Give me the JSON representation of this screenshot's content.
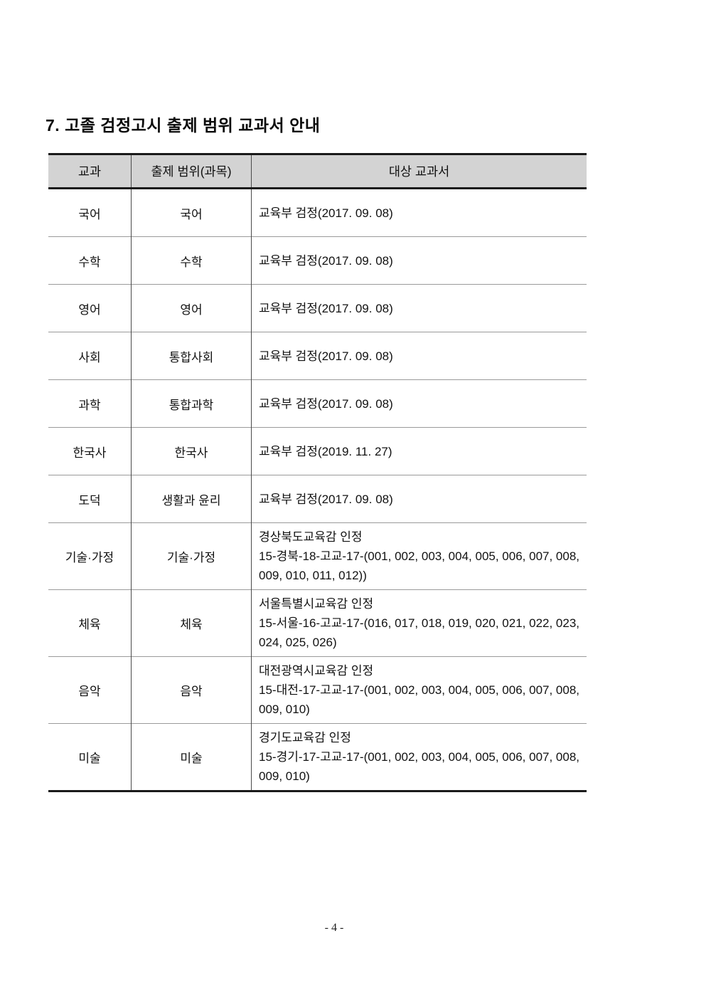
{
  "page": {
    "title": "7. 고졸 검정고시 출제 범위 교과서 안내",
    "footer": "- 4 -"
  },
  "table": {
    "headers": {
      "subject": "교과",
      "scope": "출제 범위(과목)",
      "textbook": "대상 교과서"
    },
    "rows": [
      {
        "subject": "국어",
        "scope": "국어",
        "textbook": "교육부 검정(2017. 09. 08)"
      },
      {
        "subject": "수학",
        "scope": "수학",
        "textbook": "교육부 검정(2017. 09. 08)"
      },
      {
        "subject": "영어",
        "scope": "영어",
        "textbook": "교육부 검정(2017. 09. 08)"
      },
      {
        "subject": "사회",
        "scope": "통합사회",
        "textbook": "교육부 검정(2017. 09. 08)"
      },
      {
        "subject": "과학",
        "scope": "통합과학",
        "textbook": "교육부 검정(2017. 09. 08)"
      },
      {
        "subject": "한국사",
        "scope": "한국사",
        "textbook": "교육부 검정(2019. 11. 27)"
      },
      {
        "subject": "도덕",
        "scope": "생활과 윤리",
        "textbook": "교육부 검정(2017. 09. 08)"
      },
      {
        "subject": "기술·가정",
        "scope": "기술·가정",
        "textbook": "경상북도교육감 인정\n15-경북-18-고교-17-(001, 002, 003, 004, 005, 006, 007, 008, 009, 010, 011, 012))"
      },
      {
        "subject": "체육",
        "scope": "체육",
        "textbook": "서울특별시교육감 인정\n15-서울-16-고교-17-(016, 017, 018, 019, 020, 021, 022, 023, 024, 025, 026)"
      },
      {
        "subject": "음악",
        "scope": "음악",
        "textbook": "대전광역시교육감 인정\n15-대전-17-고교-17-(001, 002, 003, 004, 005, 006, 007, 008, 009, 010)"
      },
      {
        "subject": "미술",
        "scope": "미술",
        "textbook": "경기도교육감 인정\n15-경기-17-고교-17-(001, 002, 003, 004, 005, 006, 007, 008, 009, 010)"
      }
    ]
  },
  "colors": {
    "header_bg": "#d3d3d3",
    "border_heavy": "#1a1a1a",
    "border_light": "#9a9a9a",
    "text": "#111111",
    "page_bg": "#ffffff"
  }
}
